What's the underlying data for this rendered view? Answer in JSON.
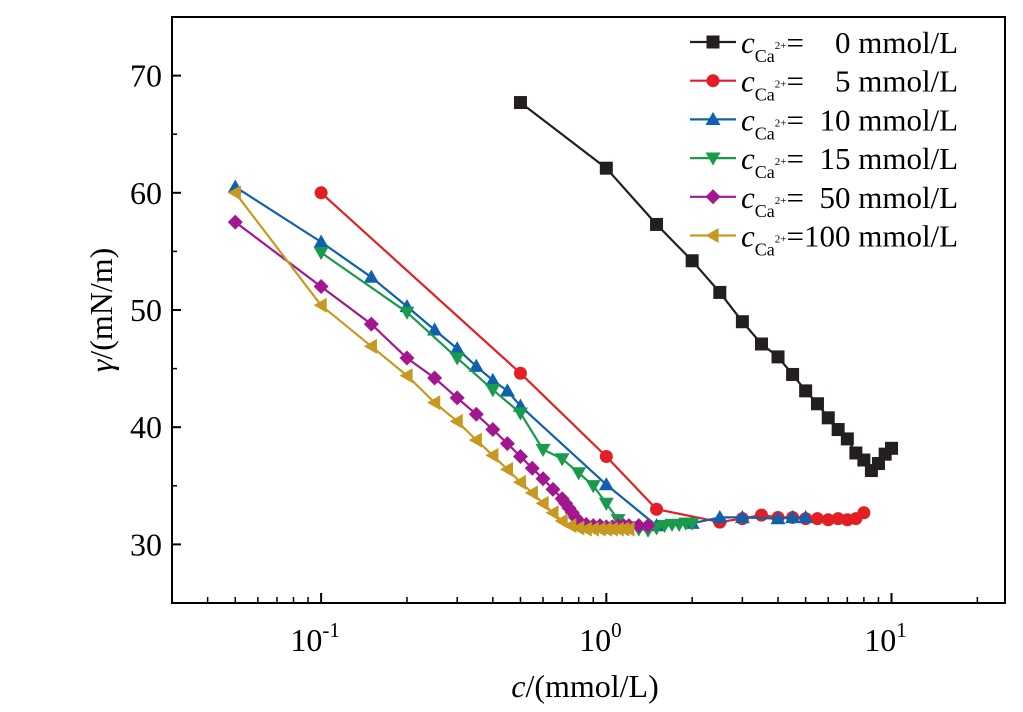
{
  "chart_data": {
    "type": "line",
    "xlabel": {
      "italic": "c",
      "rest": "/(mmol/L)"
    },
    "ylabel": {
      "italic": "γ",
      "rest": "/(mN/m)"
    },
    "x_scale": "log",
    "xlim": [
      0.03,
      25
    ],
    "ylim": [
      25,
      75
    ],
    "x_ticks": [
      {
        "value": 0.1,
        "base": "10",
        "exp": "-1"
      },
      {
        "value": 1,
        "base": "10",
        "exp": "0"
      },
      {
        "value": 10,
        "base": "10",
        "exp": "1"
      }
    ],
    "y_ticks": [
      {
        "value": 30,
        "label": "30"
      },
      {
        "value": 40,
        "label": "40"
      },
      {
        "value": 50,
        "label": "50"
      },
      {
        "value": 60,
        "label": "60"
      },
      {
        "value": 70,
        "label": "70"
      }
    ],
    "grid": false,
    "legend_position": "top-right",
    "legend_prefix": "c",
    "legend_sub": "Ca",
    "legend_sup": "2+",
    "series": [
      {
        "name": "=    0 mmol/L",
        "color": "#231f20",
        "marker": "square",
        "x": [
          0.5,
          1.0,
          1.5,
          2.0,
          2.5,
          3.0,
          3.5,
          4.0,
          4.5,
          5.0,
          5.5,
          6.0,
          6.5,
          7.0,
          7.5,
          8.0,
          8.5,
          9.0,
          9.5,
          10.0
        ],
        "y": [
          67.7,
          62.1,
          57.3,
          54.2,
          51.5,
          49.0,
          47.1,
          46.0,
          44.5,
          43.1,
          42.0,
          40.8,
          39.8,
          39.0,
          37.8,
          37.2,
          36.3,
          36.9,
          37.7,
          38.2
        ]
      },
      {
        "name": "=    5 mmol/L",
        "color": "#e31e24",
        "marker": "circle",
        "x": [
          0.1,
          0.5,
          1.0,
          1.5,
          2.5,
          3.0,
          3.5,
          4.0,
          4.5,
          5.0,
          5.5,
          6.0,
          6.5,
          7.0,
          7.5,
          8.0
        ],
        "y": [
          60.0,
          44.6,
          37.5,
          33.0,
          31.9,
          32.2,
          32.5,
          32.3,
          32.3,
          32.2,
          32.2,
          32.1,
          32.2,
          32.1,
          32.2,
          32.7
        ]
      },
      {
        "name": "=  10 mmol/L",
        "color": "#0f61ad",
        "marker": "triangle-up",
        "x": [
          0.05,
          0.1,
          0.15,
          0.2,
          0.25,
          0.3,
          0.35,
          0.4,
          0.45,
          0.5,
          1.0,
          1.5,
          2.0,
          2.5,
          3.0,
          4.0,
          4.5,
          5.0
        ],
        "y": [
          60.5,
          55.8,
          52.8,
          50.3,
          48.3,
          46.7,
          45.2,
          44.0,
          43.1,
          41.8,
          35.1,
          31.6,
          31.8,
          32.3,
          32.3,
          32.2,
          32.3,
          32.3
        ]
      },
      {
        "name": "=  15 mmol/L",
        "color": "#1a9a4b",
        "marker": "triangle-down",
        "x": [
          0.1,
          0.2,
          0.3,
          0.4,
          0.5,
          0.6,
          0.7,
          0.8,
          0.9,
          1.0,
          1.1,
          1.2,
          1.3,
          1.4,
          1.5,
          1.6,
          1.7,
          1.8,
          1.9,
          2.0
        ],
        "y": [
          54.9,
          49.8,
          45.9,
          43.2,
          41.2,
          38.1,
          37.3,
          36.1,
          35.0,
          33.5,
          32.1,
          31.5,
          31.3,
          31.2,
          31.4,
          31.6,
          31.7,
          31.7,
          31.8,
          31.8
        ]
      },
      {
        "name": "=  50 mmol/L",
        "color": "#a3168f",
        "marker": "diamond",
        "x": [
          0.05,
          0.1,
          0.15,
          0.2,
          0.25,
          0.3,
          0.35,
          0.4,
          0.45,
          0.5,
          0.55,
          0.6,
          0.65,
          0.7,
          0.72,
          0.74,
          0.76,
          0.78,
          0.8,
          0.85,
          0.9,
          0.95,
          1.0,
          1.05,
          1.1,
          1.15,
          1.2,
          1.3,
          1.4
        ],
        "y": [
          57.5,
          52.0,
          48.8,
          45.9,
          44.2,
          42.5,
          41.1,
          39.8,
          38.6,
          37.5,
          36.5,
          35.6,
          34.7,
          33.9,
          33.5,
          33.1,
          32.7,
          32.3,
          32.0,
          31.7,
          31.6,
          31.6,
          31.5,
          31.5,
          31.6,
          31.6,
          31.6,
          31.6,
          31.6
        ]
      },
      {
        "name": "=100 mmol/L",
        "color": "#c69a21",
        "marker": "triangle-left",
        "x": [
          0.05,
          0.1,
          0.15,
          0.2,
          0.25,
          0.3,
          0.35,
          0.4,
          0.45,
          0.5,
          0.55,
          0.6,
          0.65,
          0.7,
          0.75,
          0.8,
          0.85,
          0.9,
          0.95,
          1.0,
          1.05,
          1.1,
          1.15,
          1.2
        ],
        "y": [
          60.0,
          50.4,
          46.9,
          44.4,
          42.1,
          40.5,
          38.9,
          37.6,
          36.4,
          35.3,
          34.4,
          33.5,
          32.7,
          32.0,
          31.6,
          31.4,
          31.3,
          31.3,
          31.3,
          31.3,
          31.3,
          31.3,
          31.3,
          31.3
        ]
      }
    ]
  }
}
